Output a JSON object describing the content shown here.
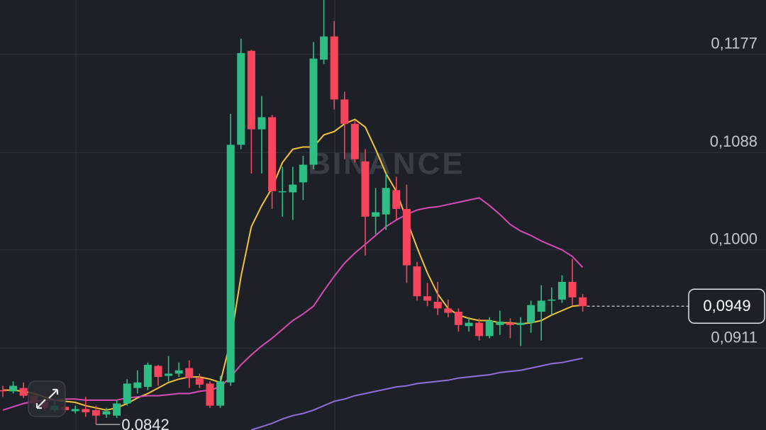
{
  "chart_data": {
    "type": "candlestick",
    "watermark": "BINANCE",
    "up_color": "#2ebd85",
    "down_color": "#f6465d",
    "ylim": [
      0.0837,
      0.1226
    ],
    "yticks": [
      {
        "value": 0.1177,
        "label": "0,1177"
      },
      {
        "value": 0.1088,
        "label": "0,1088"
      },
      {
        "value": 0.1,
        "label": "0,1000"
      },
      {
        "value": 0.0911,
        "label": "0,0911"
      }
    ],
    "grid": true,
    "open": [
      0.0873,
      0.0872,
      0.0875,
      0.0868,
      0.0863,
      0.0855,
      0.0858,
      0.0854,
      0.0856,
      0.0855,
      0.0851,
      0.085,
      0.0861,
      0.0875,
      0.0876,
      0.0895,
      0.0886,
      0.0888,
      0.0893,
      0.0884,
      0.0879,
      0.0859,
      0.088,
      0.1095,
      0.118,
      0.1109,
      0.112,
      0.1053,
      0.1052,
      0.1061,
      0.1077,
      0.1172,
      0.1193,
      0.1136,
      0.1114,
      0.108,
      0.103,
      0.1032,
      0.1054,
      0.1037,
      0.0985,
      0.0958,
      0.0953,
      0.0947,
      0.0944,
      0.0931,
      0.0934,
      0.0922,
      0.0932,
      0.0934,
      0.0932,
      0.0934,
      0.0944,
      0.0954,
      0.0955,
      0.0971,
      0.0957
    ],
    "high": [
      0.0877,
      0.0881,
      0.088,
      0.0872,
      0.0868,
      0.0864,
      0.0862,
      0.0859,
      0.0867,
      0.0859,
      0.0857,
      0.0864,
      0.0883,
      0.0891,
      0.0898,
      0.0896,
      0.0904,
      0.0898,
      0.09,
      0.0888,
      0.0881,
      0.0886,
      0.1123,
      0.1191,
      0.1181,
      0.1139,
      0.1122,
      0.1075,
      0.1075,
      0.1085,
      0.1188,
      0.1226,
      0.1207,
      0.1143,
      0.1117,
      0.1091,
      0.1056,
      0.1069,
      0.1066,
      0.1059,
      0.0989,
      0.097,
      0.0971,
      0.0955,
      0.0947,
      0.0939,
      0.0938,
      0.0939,
      0.0945,
      0.0938,
      0.0939,
      0.0954,
      0.0968,
      0.0966,
      0.0977,
      0.0992,
      0.096
    ],
    "low": [
      0.0867,
      0.087,
      0.0866,
      0.0857,
      0.0854,
      0.0853,
      0.0853,
      0.0852,
      0.0849,
      0.0842,
      0.0848,
      0.0848,
      0.0859,
      0.087,
      0.0873,
      0.0877,
      0.0881,
      0.0885,
      0.0875,
      0.0875,
      0.0857,
      0.0857,
      0.0877,
      0.1091,
      0.1069,
      0.1069,
      0.1037,
      0.103,
      0.1027,
      0.1045,
      0.1073,
      0.1168,
      0.1127,
      0.1082,
      0.1079,
      0.0995,
      0.1014,
      0.1018,
      0.1027,
      0.097,
      0.0954,
      0.0949,
      0.0941,
      0.0939,
      0.0926,
      0.0926,
      0.0918,
      0.092,
      0.0923,
      0.092,
      0.0913,
      0.0925,
      0.0918,
      0.0941,
      0.0952,
      0.095,
      0.0944
    ],
    "close": [
      0.0872,
      0.0877,
      0.0868,
      0.0861,
      0.0857,
      0.0859,
      0.0855,
      0.0856,
      0.0853,
      0.085,
      0.0854,
      0.0861,
      0.0879,
      0.088,
      0.0896,
      0.0885,
      0.0888,
      0.0891,
      0.0884,
      0.0878,
      0.0859,
      0.0881,
      0.1095,
      0.1178,
      0.1109,
      0.112,
      0.1053,
      0.1053,
      0.1059,
      0.1077,
      0.1173,
      0.1193,
      0.1136,
      0.1114,
      0.1082,
      0.103,
      0.1034,
      0.1056,
      0.1037,
      0.0986,
      0.0958,
      0.0954,
      0.0947,
      0.0943,
      0.0932,
      0.0934,
      0.0922,
      0.0936,
      0.0935,
      0.0932,
      0.0934,
      0.095,
      0.0954,
      0.0955,
      0.0971,
      0.0957,
      0.0949
    ],
    "series": [
      {
        "color": "#f0c23b",
        "values": [
          0.0873,
          0.0873,
          0.0872,
          0.087,
          0.0867,
          0.0864,
          0.0863,
          0.0862,
          0.0859,
          0.0857,
          0.0855,
          0.0857,
          0.0861,
          0.0866,
          0.087,
          0.0875,
          0.088,
          0.0883,
          0.0885,
          0.0885,
          0.0883,
          0.088,
          0.0918,
          0.0976,
          0.1021,
          0.104,
          0.1056,
          0.1079,
          0.1091,
          0.1093,
          0.1093,
          0.1104,
          0.1107,
          0.1114,
          0.1118,
          0.1111,
          0.1091,
          0.1069,
          0.1053,
          0.1027,
          0.1002,
          0.0979,
          0.096,
          0.0947,
          0.0941,
          0.0938,
          0.0936,
          0.0936,
          0.0934,
          0.0934,
          0.0933,
          0.0934,
          0.0936,
          0.0941,
          0.0945,
          0.0949,
          0.095
        ]
      },
      {
        "color": "#d64bb4",
        "values": [
          0.0855,
          0.0858,
          0.0861,
          0.0863,
          0.0864,
          0.0864,
          0.0865,
          0.0865,
          0.0864,
          0.0864,
          0.0864,
          0.0864,
          0.0866,
          0.0867,
          0.0868,
          0.0868,
          0.0869,
          0.087,
          0.087,
          0.0872,
          0.0873,
          0.0876,
          0.0885,
          0.0896,
          0.0905,
          0.0913,
          0.092,
          0.0928,
          0.0936,
          0.0942,
          0.0949,
          0.0963,
          0.0976,
          0.0988,
          0.0997,
          0.1005,
          0.1013,
          0.1021,
          0.1027,
          0.1032,
          0.1036,
          0.1038,
          0.1039,
          0.1041,
          0.1043,
          0.1045,
          0.1047,
          0.104,
          0.1032,
          0.1023,
          0.1017,
          0.1013,
          0.1008,
          0.1004,
          0.1,
          0.0994,
          0.0984
        ]
      },
      {
        "color": "#8e6fd8",
        "values": [
          null,
          null,
          null,
          null,
          null,
          null,
          null,
          null,
          null,
          null,
          null,
          null,
          null,
          null,
          null,
          null,
          null,
          null,
          null,
          null,
          null,
          null,
          null,
          null,
          0.0837,
          0.084,
          0.0843,
          0.0847,
          0.085,
          0.0852,
          0.0855,
          0.0859,
          0.0863,
          0.0865,
          0.0868,
          0.087,
          0.0872,
          0.0874,
          0.0876,
          0.0877,
          0.0879,
          0.088,
          0.0881,
          0.0882,
          0.0884,
          0.0885,
          0.0886,
          0.0887,
          0.0889,
          0.089,
          0.0891,
          0.0893,
          0.0895,
          0.0897,
          0.0898,
          0.09,
          0.0902
        ]
      }
    ],
    "current_price": {
      "value": 0.0949,
      "label": "0,0949"
    },
    "low_marker": {
      "index": 9,
      "value": 0.0842,
      "label": "0,0842"
    }
  }
}
